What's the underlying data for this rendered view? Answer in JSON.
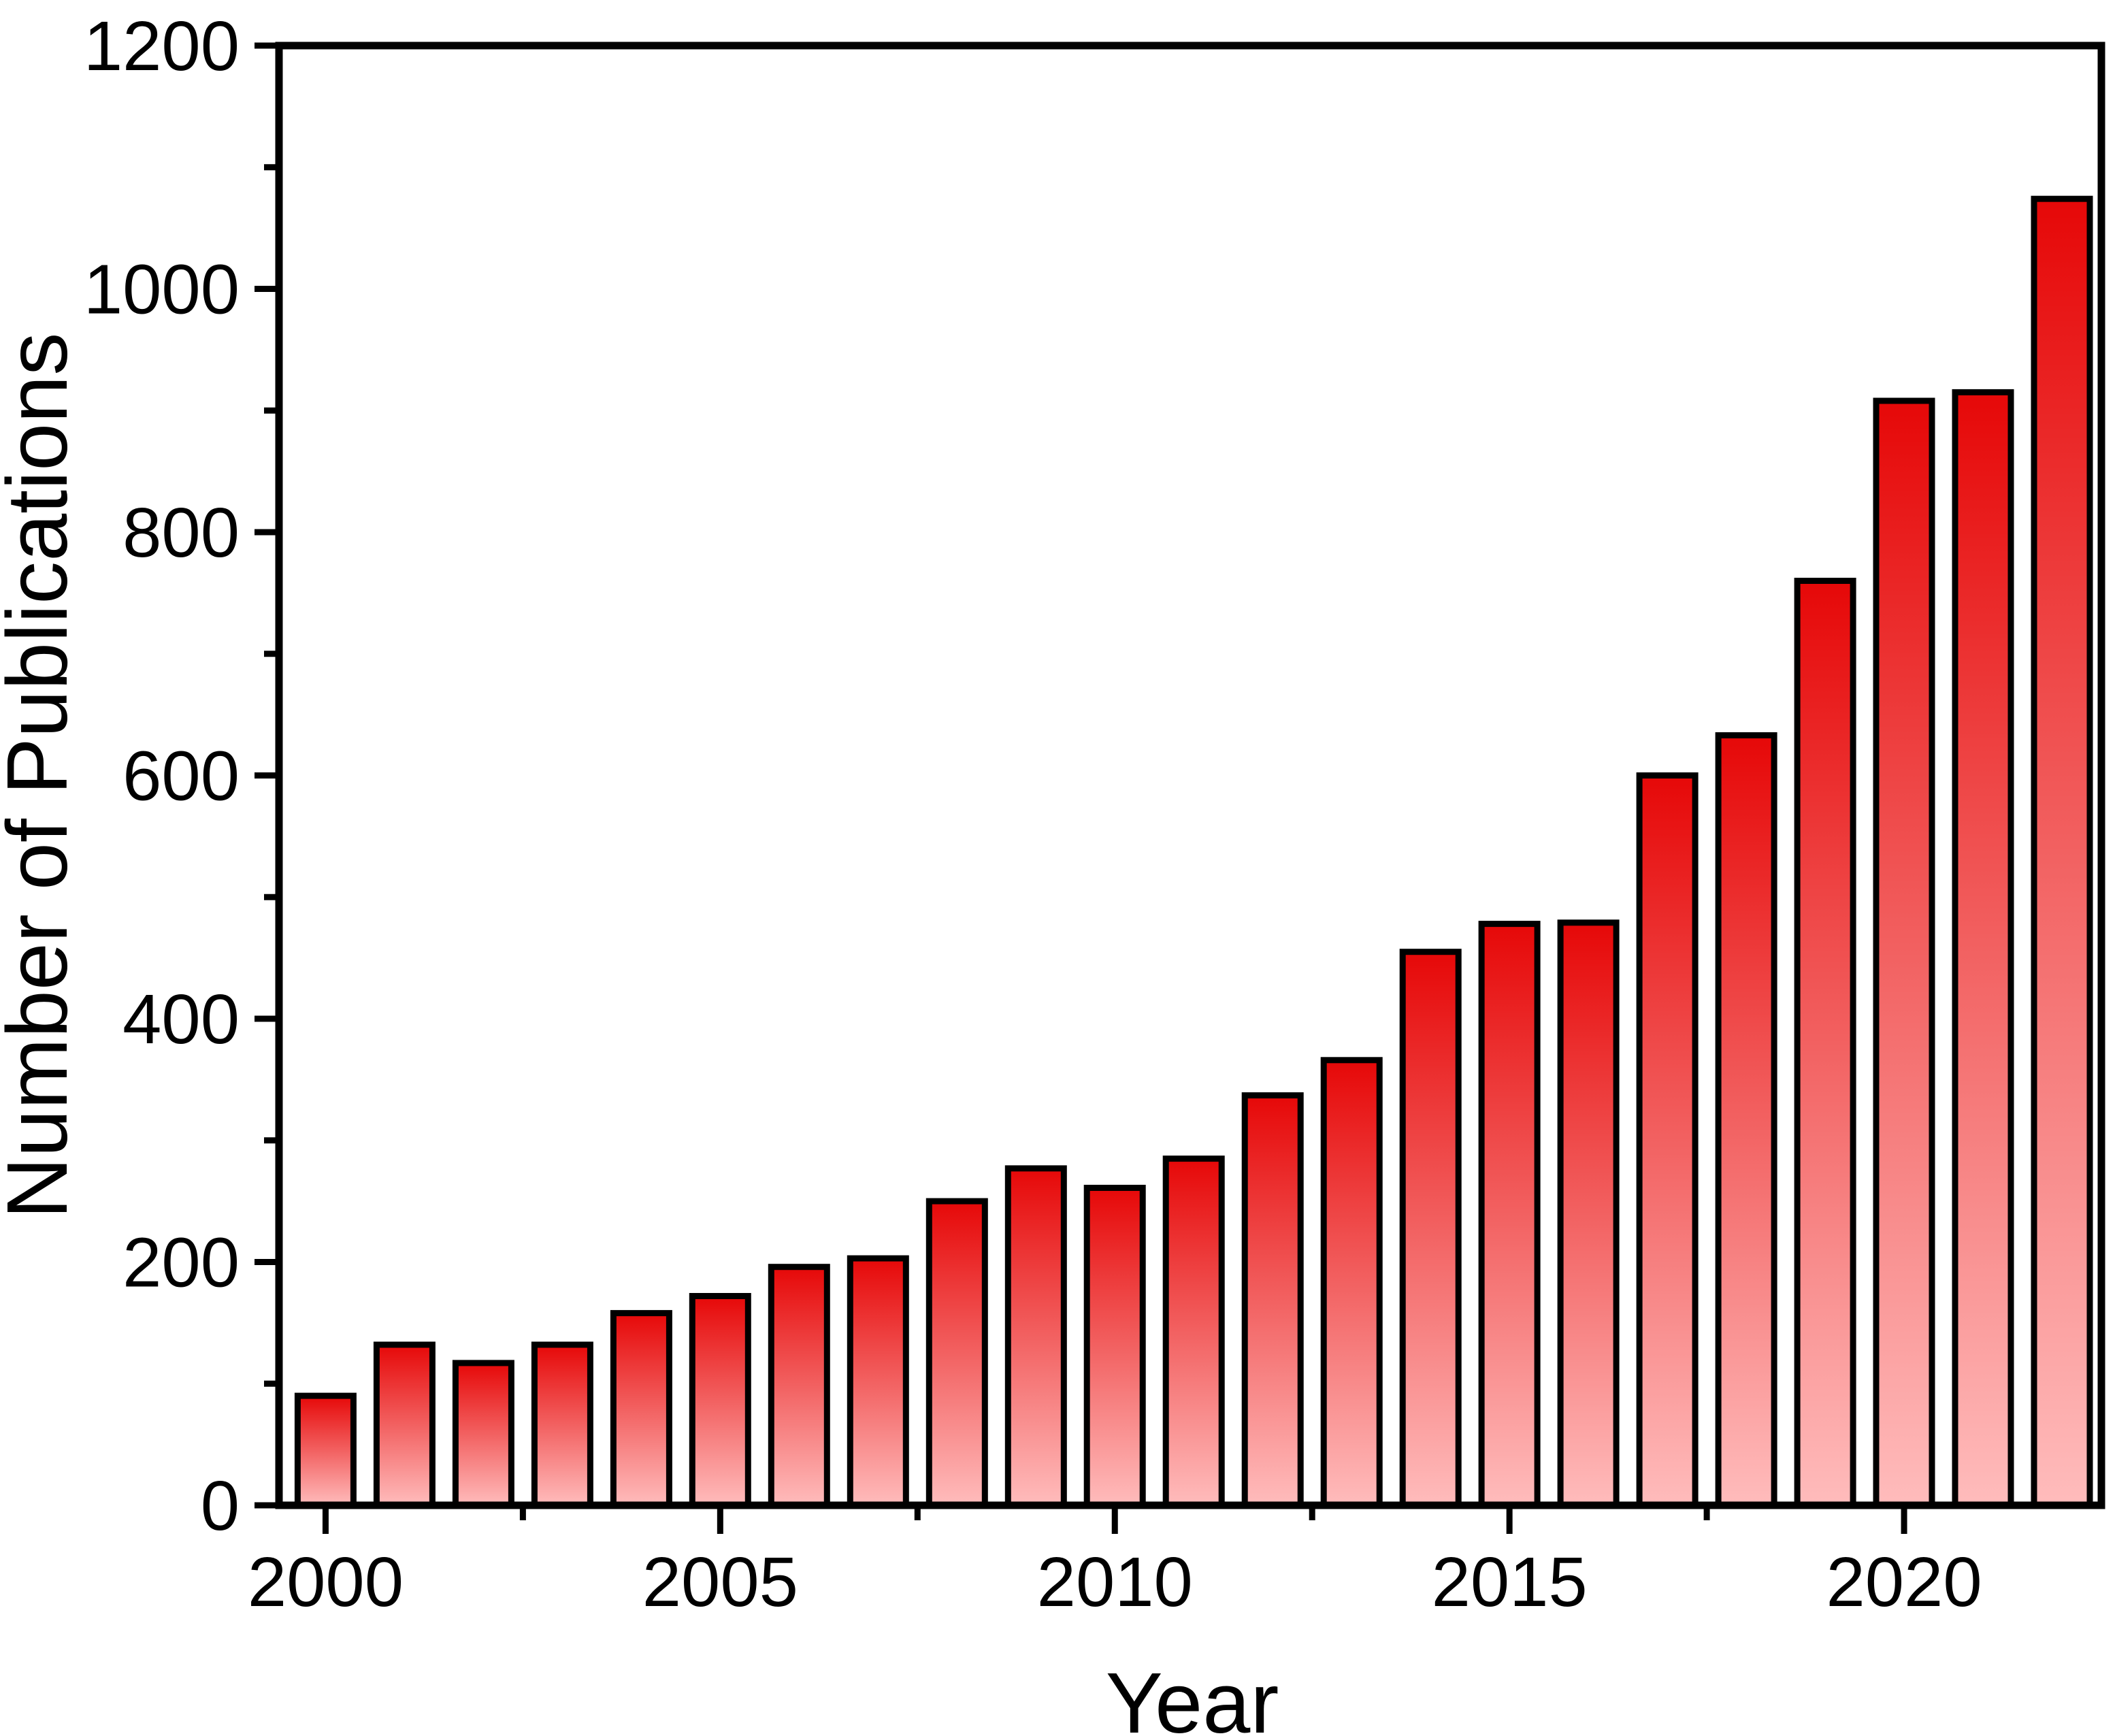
{
  "chart_data": {
    "type": "bar",
    "x": [
      2000,
      2001,
      2002,
      2003,
      2004,
      2005,
      2006,
      2007,
      2008,
      2009,
      2010,
      2011,
      2012,
      2013,
      2014,
      2015,
      2016,
      2017,
      2018,
      2019,
      2020,
      2021,
      2022
    ],
    "values": [
      90,
      132,
      117,
      132,
      158,
      172,
      196,
      203,
      250,
      277,
      261,
      285,
      337,
      366,
      455,
      478,
      479,
      600,
      633,
      760,
      908,
      915,
      1074
    ],
    "title": "",
    "xlabel": "Year",
    "ylabel": "Number of Publications",
    "xlim": [
      1999.41,
      2022.5
    ],
    "ylim": [
      0,
      1200
    ],
    "y_major_ticks": [
      0,
      200,
      400,
      600,
      800,
      1000,
      1200
    ],
    "y_minor_ticks": [
      100,
      300,
      500,
      700,
      900,
      1100
    ],
    "x_major_ticks": [
      2000,
      2005,
      2010,
      2015,
      2020
    ],
    "x_minor_ticks": [
      2002.5,
      2007.5,
      2012.5,
      2017.5
    ],
    "grid": false,
    "legend_position": "none",
    "colors": {
      "bar_gradient_top": "#e60808",
      "bar_gradient_mid": "#f26161",
      "bar_gradient_bottom": "#ffbcbc",
      "bar_border": "#000000",
      "axis": "#000000",
      "background": "#ffffff"
    }
  }
}
